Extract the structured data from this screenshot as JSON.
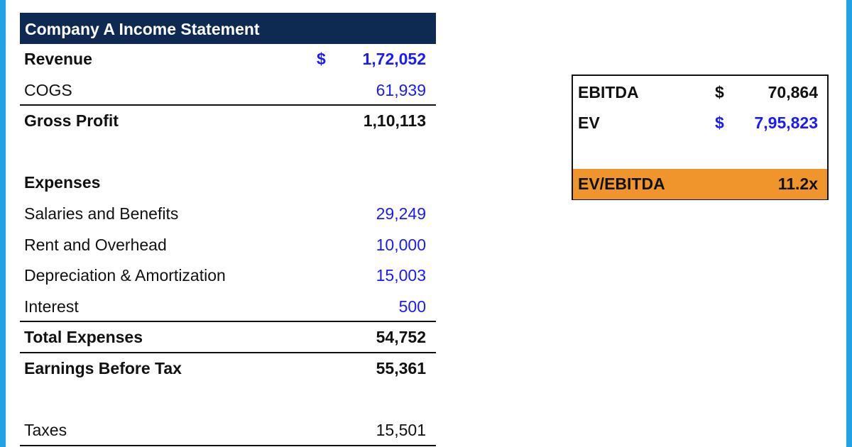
{
  "statement": {
    "title": "Company A Income Statement",
    "rows": [
      {
        "label": "Revenue",
        "currency": "$",
        "value": "1,72,052"
      },
      {
        "label": "COGS",
        "value": "61,939"
      },
      {
        "label": "Gross Profit",
        "value": "1,10,113"
      },
      {
        "label": "",
        "value": ""
      },
      {
        "label": "Expenses",
        "value": ""
      },
      {
        "label": "Salaries and Benefits",
        "value": "29,249"
      },
      {
        "label": "Rent and Overhead",
        "value": "10,000"
      },
      {
        "label": "Depreciation & Amortization",
        "value": "15,003"
      },
      {
        "label": "Interest",
        "value": "500"
      },
      {
        "label": "Total Expenses",
        "value": "54,752"
      },
      {
        "label": "Earnings Before Tax",
        "value": "55,361"
      },
      {
        "label": "",
        "value": ""
      },
      {
        "label": "Taxes",
        "value": "15,501"
      }
    ]
  },
  "ratio": {
    "ebitda": {
      "label": "EBITDA",
      "currency": "$",
      "value": "70,864"
    },
    "ev": {
      "label": "EV",
      "currency": "$",
      "value": "7,95,823"
    },
    "multiple": {
      "label": "EV/EBITDA",
      "value": "11.2x"
    }
  },
  "colors": {
    "header_bg": "#0f2a52",
    "input_blue": "#1a1aff",
    "highlight_orange": "#f0952c",
    "frame_blue": "#1fa3e6"
  }
}
